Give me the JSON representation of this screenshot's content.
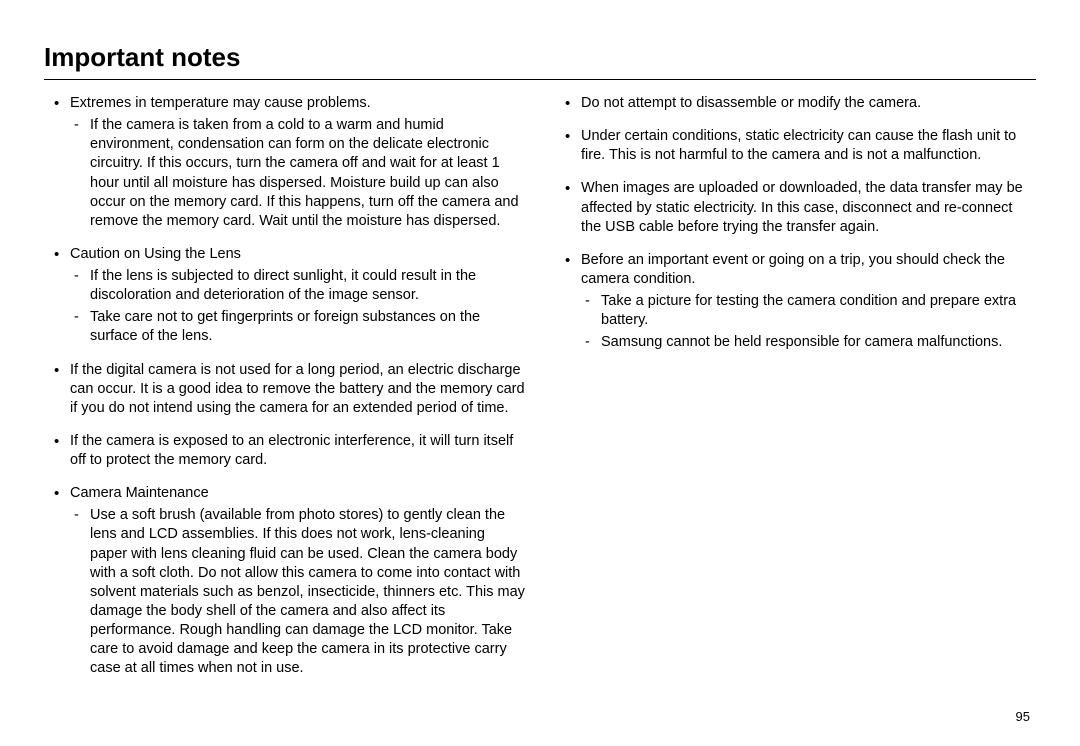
{
  "title": "Important notes",
  "pageNumber": "95",
  "left": [
    {
      "lead": "Extremes in temperature may cause problems.",
      "subs": [
        "If the camera is taken from a cold to a warm and humid environment, condensation can form on the delicate electronic circuitry. If this occurs, turn the camera off and wait for at least 1 hour until all moisture has dispersed. Moisture build up can also occur on the memory card. If this happens, turn off the camera and remove the memory card. Wait until the moisture has dispersed."
      ]
    },
    {
      "lead": "Caution on Using the Lens",
      "subs": [
        "If the lens is subjected to direct sunlight, it could result in the discoloration and deterioration of the image sensor.",
        "Take care not to get fingerprints or foreign substances on the surface of the lens."
      ]
    },
    {
      "lead": "If the digital camera is not used for a long period, an electric discharge can occur. It is a good idea to remove the battery and the memory card if you do not intend using the camera for an extended period of time.",
      "subs": []
    },
    {
      "lead": "If the camera is exposed to an electronic interference, it will turn itself off to protect the memory card.",
      "subs": []
    },
    {
      "lead": "Camera Maintenance",
      "subs": [
        "Use a soft brush (available from photo stores) to gently clean the lens and LCD assemblies. If this does not work, lens-cleaning paper with lens cleaning fluid can be used.\nClean the camera body with a soft cloth. Do not allow this camera to come into contact with solvent materials such as benzol, insecticide, thinners etc. This may damage the body shell of the camera and also affect its performance. Rough handling can damage the LCD monitor. Take care to avoid damage and keep the camera in its protective carry case at all times when not in use."
      ]
    }
  ],
  "right": [
    {
      "lead": "Do not attempt to disassemble or modify the camera.",
      "subs": []
    },
    {
      "lead": "Under certain conditions, static electricity can cause the flash unit to fire. This is not harmful to the camera and is not a malfunction.",
      "subs": []
    },
    {
      "lead": "When images are uploaded or downloaded, the data transfer may be affected by static electricity. In this case, disconnect and re-connect the USB cable before trying the transfer again.",
      "subs": []
    },
    {
      "lead": "Before an important event or going on a trip, you should check the camera condition.",
      "subs": [
        "Take a picture for testing the camera condition and prepare extra battery.",
        "Samsung cannot be held responsible for camera malfunctions."
      ]
    }
  ]
}
